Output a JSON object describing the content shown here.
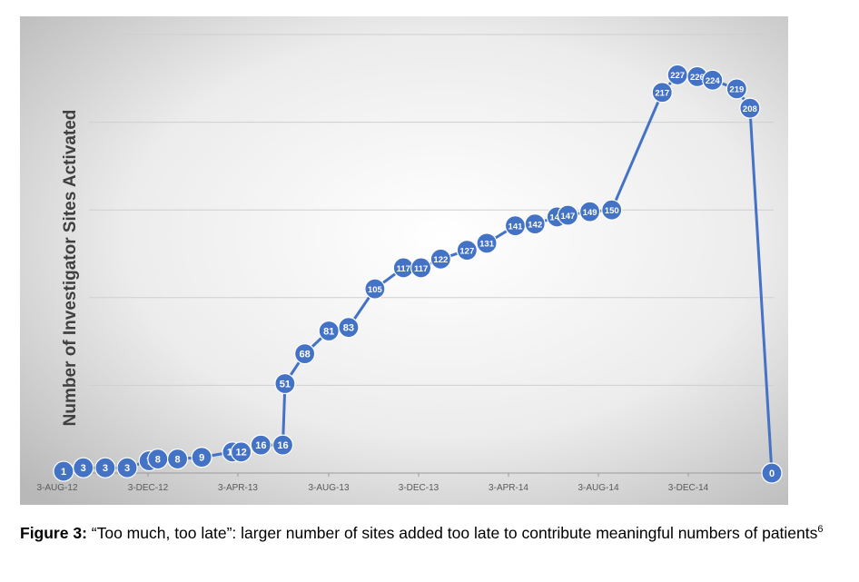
{
  "chart_data": {
    "type": "line",
    "ylabel": "Number of Investigator Sites Activated",
    "xlabel": "",
    "title": "",
    "ylim": [
      0,
      250
    ],
    "grid": true,
    "x_tick_labels": [
      "3-AUG-12",
      "3-DEC-12",
      "3-APR-13",
      "3-AUG-13",
      "3-DEC-13",
      "3-APR-14",
      "3-AUG-14",
      "3-DEC-14"
    ],
    "series": [
      {
        "name": "Investigator Sites Activated",
        "color": "#4472c4",
        "points": [
          {
            "x": 0.0,
            "y": 1
          },
          {
            "x": 0.9,
            "y": 3
          },
          {
            "x": 1.9,
            "y": 3
          },
          {
            "x": 2.9,
            "y": 3
          },
          {
            "x": 3.9,
            "y": 7
          },
          {
            "x": 4.3,
            "y": 8
          },
          {
            "x": 5.2,
            "y": 8
          },
          {
            "x": 6.3,
            "y": 9
          },
          {
            "x": 7.7,
            "y": 12
          },
          {
            "x": 8.1,
            "y": 12
          },
          {
            "x": 9.0,
            "y": 16
          },
          {
            "x": 10.0,
            "y": 16
          },
          {
            "x": 10.1,
            "y": 51
          },
          {
            "x": 11.0,
            "y": 68
          },
          {
            "x": 12.1,
            "y": 81
          },
          {
            "x": 13.0,
            "y": 83
          },
          {
            "x": 14.2,
            "y": 105
          },
          {
            "x": 15.5,
            "y": 117
          },
          {
            "x": 16.3,
            "y": 117
          },
          {
            "x": 17.2,
            "y": 122
          },
          {
            "x": 18.4,
            "y": 127
          },
          {
            "x": 19.3,
            "y": 131
          },
          {
            "x": 20.6,
            "y": 141
          },
          {
            "x": 21.5,
            "y": 142
          },
          {
            "x": 22.5,
            "y": 146
          },
          {
            "x": 23.0,
            "y": 147
          },
          {
            "x": 24.0,
            "y": 149
          },
          {
            "x": 25.0,
            "y": 150
          },
          {
            "x": 27.3,
            "y": 217
          },
          {
            "x": 28.0,
            "y": 227
          },
          {
            "x": 28.9,
            "y": 226
          },
          {
            "x": 29.6,
            "y": 224
          },
          {
            "x": 30.7,
            "y": 219
          },
          {
            "x": 31.3,
            "y": 208
          },
          {
            "x": 32.3,
            "y": 0
          }
        ]
      }
    ],
    "xlim": [
      0,
      32.3
    ]
  },
  "caption": {
    "label": "Figure 3:",
    "text": " “Too much, too late”: larger number of sites added too late to contribute meaningful numbers of patients",
    "superscript": "6"
  }
}
